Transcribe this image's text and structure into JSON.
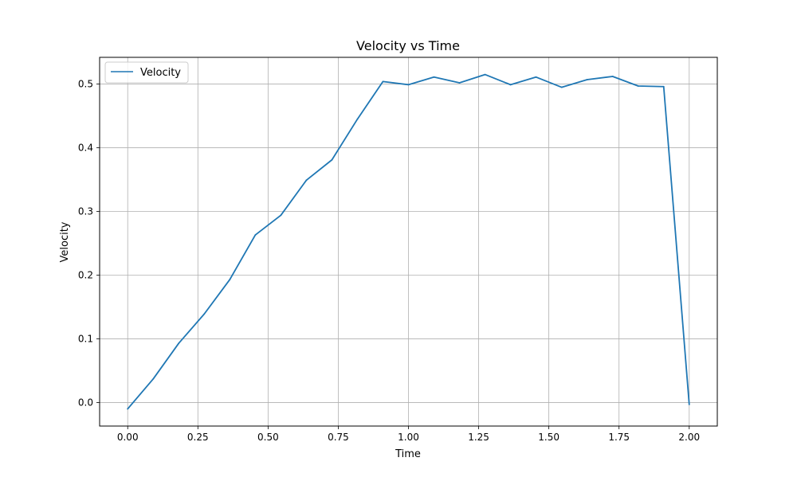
{
  "chart_data": {
    "type": "line",
    "title": "Velocity vs Time",
    "xlabel": "Time",
    "ylabel": "Velocity",
    "xlim": [
      -0.1,
      2.1
    ],
    "ylim": [
      -0.037,
      0.542
    ],
    "xticks": [
      0.0,
      0.25,
      0.5,
      0.75,
      1.0,
      1.25,
      1.5,
      1.75,
      2.0
    ],
    "xtick_labels": [
      "0.00",
      "0.25",
      "0.50",
      "0.75",
      "1.00",
      "1.25",
      "1.50",
      "1.75",
      "2.00"
    ],
    "yticks": [
      0.0,
      0.1,
      0.2,
      0.3,
      0.4,
      0.5
    ],
    "ytick_labels": [
      "0.0",
      "0.1",
      "0.2",
      "0.3",
      "0.4",
      "0.5"
    ],
    "grid": true,
    "legend_position": "upper-left",
    "series": [
      {
        "name": "Velocity",
        "color": "#1f77b4",
        "x": [
          0.0,
          0.0909,
          0.1818,
          0.2727,
          0.3636,
          0.4545,
          0.5455,
          0.6364,
          0.7273,
          0.8182,
          0.9091,
          1.0,
          1.0909,
          1.1818,
          1.2727,
          1.3636,
          1.4545,
          1.5455,
          1.6364,
          1.7273,
          1.8182,
          1.9091,
          2.0
        ],
        "y": [
          -0.01,
          0.037,
          0.093,
          0.139,
          0.193,
          0.263,
          0.294,
          0.349,
          0.381,
          0.445,
          0.504,
          0.499,
          0.511,
          0.502,
          0.515,
          0.499,
          0.511,
          0.495,
          0.507,
          0.512,
          0.497,
          0.496,
          -0.003
        ]
      }
    ]
  }
}
